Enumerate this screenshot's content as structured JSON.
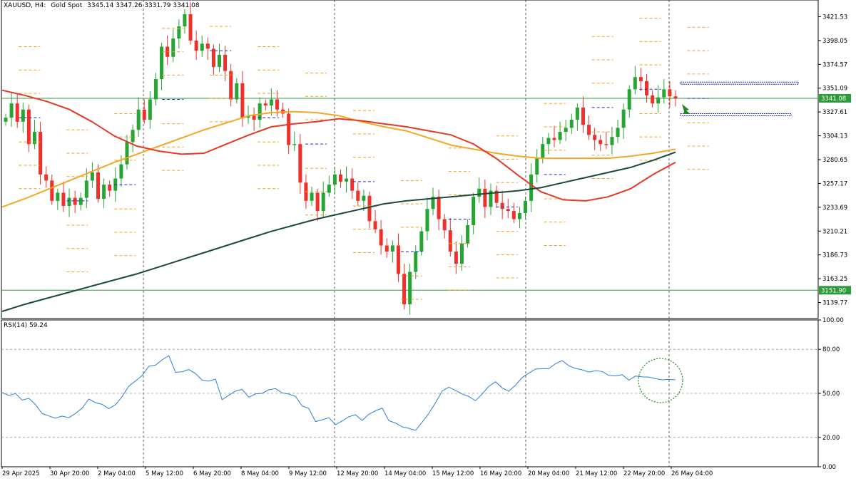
{
  "header": {
    "symbol": "XAUUSD, H4:",
    "name": "Gold Spot",
    "ohlc": "3345.14 3347.26 3331.79 3341.08"
  },
  "rsi_header": {
    "label": "RSI(14) 59.24"
  },
  "colors": {
    "bull": "#26a533",
    "bear": "#f0302b",
    "ma_fast": "#e53825",
    "ma_mid": "#f5a623",
    "ma_slow": "#1b4a3a",
    "rsi": "#2b7fd9",
    "hline": "#2e9a3c",
    "pivot": "#f0a020",
    "pivot_blue": "#1b2bd0",
    "arrow": "#1e8a2a"
  },
  "chart_data": [
    {
      "type": "candlestick",
      "title": "XAUUSD, H4: Gold Spot",
      "ylim": [
        3124,
        3438
      ],
      "y_ticks": [
        "3421.53",
        "3398.05",
        "3374.57",
        "3351.09",
        "3327.61",
        "3304.13",
        "3280.65",
        "3257.17",
        "3233.69",
        "3210.21",
        "3186.73",
        "3163.25",
        "3139.77"
      ],
      "x_ticks": [
        "29 Apr 2025",
        "30 Apr 20:00",
        "2 May 04:00",
        "5 May 12:00",
        "6 May 20:00",
        "8 May 04:00",
        "9 May 12:00",
        "12 May 20:00",
        "14 May 04:00",
        "15 May 12:00",
        "16 May 20:00",
        "20 May 04:00",
        "21 May 12:00",
        "22 May 20:00",
        "26 May 04:00"
      ],
      "price_labels": [
        {
          "value": 3341.08,
          "text": "3341.08"
        },
        {
          "value": 3151.9,
          "text": "3151.90"
        }
      ],
      "horizontal_lines": [
        3341.08,
        3151.9
      ],
      "closes": [
        3322,
        3336,
        3318,
        3330,
        3296,
        3308,
        3266,
        3260,
        3240,
        3248,
        3235,
        3243,
        3236,
        3243,
        3260,
        3268,
        3242,
        3256,
        3250,
        3262,
        3276,
        3298,
        3310,
        3330,
        3320,
        3340,
        3360,
        3392,
        3382,
        3400,
        3412,
        3424,
        3398,
        3388,
        3395,
        3390,
        3372,
        3384,
        3368,
        3340,
        3356,
        3322,
        3324,
        3320,
        3336,
        3334,
        3340,
        3330,
        3326,
        3295,
        3296,
        3258,
        3240,
        3248,
        3230,
        3248,
        3256,
        3266,
        3259,
        3262,
        3250,
        3240,
        3245,
        3220,
        3212,
        3196,
        3190,
        3196,
        3168,
        3138,
        3170,
        3190,
        3210,
        3232,
        3244,
        3222,
        3211,
        3190,
        3178,
        3198,
        3216,
        3244,
        3252,
        3234,
        3250,
        3238,
        3232,
        3230,
        3222,
        3228,
        3240,
        3266,
        3282,
        3296,
        3302,
        3300,
        3308,
        3312,
        3320,
        3332,
        3315,
        3305,
        3300,
        3296,
        3295,
        3303,
        3312,
        3330,
        3350,
        3362,
        3358,
        3344,
        3336,
        3342,
        3350,
        3343,
        3341
      ],
      "ma_fast": {
        "from": 0,
        "values": [
          3349,
          3344,
          3338,
          3330,
          3318,
          3304,
          3294,
          3289,
          3286,
          3287,
          3296,
          3305,
          3313,
          3316,
          3318,
          3321,
          3319,
          3316,
          3313,
          3309,
          3305,
          3296,
          3282,
          3265,
          3249,
          3241,
          3240,
          3244,
          3252,
          3266,
          3278
        ]
      },
      "ma_mid": {
        "from": 0,
        "values": [
          3234,
          3242,
          3251,
          3260,
          3269,
          3278,
          3286,
          3294,
          3302,
          3310,
          3317,
          3324,
          3327,
          3328,
          3327,
          3324,
          3318,
          3313,
          3309,
          3302,
          3295,
          3291,
          3287,
          3284,
          3282,
          3282,
          3282,
          3282,
          3284,
          3287,
          3291
        ]
      },
      "ma_slow": {
        "from": 0,
        "values": [
          3131,
          3138,
          3144,
          3150,
          3156,
          3162,
          3168,
          3175,
          3182,
          3189,
          3196,
          3203,
          3210,
          3216,
          3222,
          3227,
          3232,
          3237,
          3240,
          3242,
          3244,
          3246,
          3248,
          3250,
          3253,
          3258,
          3263,
          3268,
          3273,
          3280,
          3288
        ]
      }
    },
    {
      "type": "line",
      "title": "RSI(14) 59.24",
      "series": [
        {
          "name": "RSI(14)",
          "values": [
            50.6,
            48.5,
            49.9,
            45.4,
            46.6,
            42.4,
            36.2,
            34.6,
            33.1,
            34.5,
            33.4,
            36.3,
            39.9,
            46.1,
            43.7,
            42.5,
            39.6,
            42.3,
            47.7,
            54.9,
            58.4,
            62.2,
            68.4,
            69.2,
            72.8,
            75.7,
            64.3,
            64.7,
            66.2,
            63.5,
            59.0,
            58.3,
            59.7,
            45.7,
            48.7,
            51.6,
            52.6,
            47.4,
            49.6,
            50.0,
            52.5,
            53.2,
            50.3,
            49.5,
            47.9,
            41.4,
            39.7,
            30.8,
            32.0,
            33.4,
            28.7,
            31.2,
            34.1,
            35.4,
            31.5,
            35.8,
            38.1,
            39.9,
            31.4,
            29.8,
            27.2,
            26.2,
            24.7,
            30.4,
            36.4,
            43.6,
            51.6,
            54.2,
            52.0,
            49.6,
            47.8,
            45.0,
            49.6,
            54.8,
            57.9,
            53.7,
            51.5,
            55.6,
            60.8,
            63.8,
            66.5,
            66.8,
            66.8,
            70.2,
            72.3,
            68.8,
            67.0,
            66.0,
            64.5,
            65.4,
            64.9,
            62.2,
            61.9,
            62.7,
            59.0,
            61.8,
            61.2,
            61.1,
            60.0,
            59.2,
            59.5,
            59.24
          ]
        }
      ],
      "ylim": [
        0,
        100
      ],
      "y_ticks": [
        "100.00",
        "80.00",
        "50.00",
        "20.00",
        "0.00"
      ],
      "levels": [
        80,
        50,
        20
      ]
    }
  ]
}
